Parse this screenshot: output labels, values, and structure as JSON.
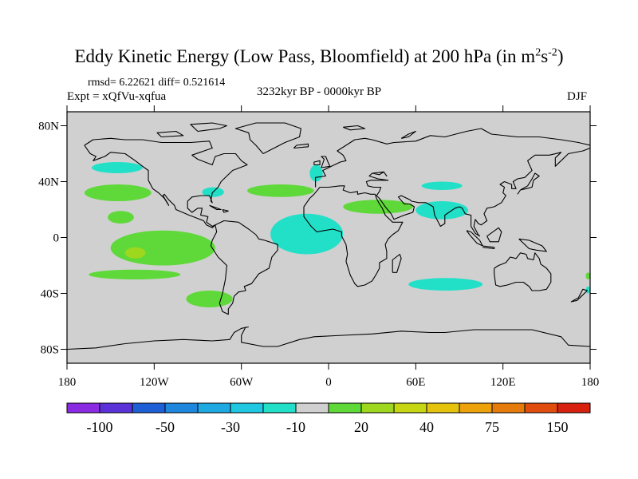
{
  "title_main": "Eddy Kinetic Energy (Low Pass, Bloomfield) at 200 hPa (in m",
  "title_unit_exp1": "2",
  "title_unit_mid": "s",
  "title_unit_exp2": "-2",
  "title_unit_close": ")",
  "stats": "rmsd= 6.22621   diff= 0.521614",
  "experiment": "Expt = xQfVu-xqfua",
  "period": "3232kyr BP - 0000kyr BP",
  "season": "DJF",
  "colors": {
    "land_gray": "#d0d0d0",
    "pos_20": "#5fd93a",
    "neg_10": "#22e0c8",
    "pos_30": "#9ed81e"
  },
  "chart_data": {
    "type": "map-contour",
    "variable": "Eddy Kinetic Energy difference",
    "level": "200 hPa",
    "lon_range": [
      -180,
      180
    ],
    "lat_range": [
      -90,
      90
    ],
    "x_ticks": [
      {
        "value": -180,
        "label": "180"
      },
      {
        "value": -120,
        "label": "120W"
      },
      {
        "value": -60,
        "label": "60W"
      },
      {
        "value": 0,
        "label": "0"
      },
      {
        "value": 60,
        "label": "60E"
      },
      {
        "value": 120,
        "label": "120E"
      },
      {
        "value": 180,
        "label": "180"
      }
    ],
    "y_ticks": [
      {
        "value": 80,
        "label": "80N"
      },
      {
        "value": 40,
        "label": "40N"
      },
      {
        "value": 0,
        "label": "0"
      },
      {
        "value": -40,
        "label": "40S"
      },
      {
        "value": -80,
        "label": "80S"
      }
    ],
    "colorbar": {
      "colors": [
        "#8a2be2",
        "#5a32d8",
        "#1f5fd6",
        "#1e86dd",
        "#1ea9e2",
        "#1fc8e0",
        "#22e0c8",
        "#d0d0d0",
        "#5fd93a",
        "#9ed81e",
        "#c6d613",
        "#e5c30c",
        "#eea20a",
        "#e57b0b",
        "#e04d0e",
        "#d8200f"
      ],
      "labels": [
        "-100",
        "-50",
        "-30",
        "-10",
        "20",
        "40",
        "75",
        "150"
      ]
    },
    "regions": [
      {
        "name": "NE Pacific",
        "level": "-10",
        "lon": [
          -163,
          -128
        ],
        "lat": [
          46,
          54
        ]
      },
      {
        "name": "N Pacific band",
        "level": "20",
        "lon": [
          -168,
          -122
        ],
        "lat": [
          26,
          38
        ]
      },
      {
        "name": "Subtropical N Pacific",
        "level": "20",
        "lon": [
          -152,
          -134
        ],
        "lat": [
          10,
          19
        ]
      },
      {
        "name": "E Pacific",
        "level": "20",
        "lon": [
          -150,
          -78
        ],
        "lat": [
          -20,
          5
        ]
      },
      {
        "name": "E Pacific core",
        "level": "30",
        "lon": [
          -140,
          -126
        ],
        "lat": [
          -15,
          -7
        ]
      },
      {
        "name": "S Pacific",
        "level": "20",
        "lon": [
          -165,
          -102
        ],
        "lat": [
          -30,
          -23
        ]
      },
      {
        "name": "S of S America",
        "level": "20",
        "lon": [
          -98,
          -66
        ],
        "lat": [
          -50,
          -38
        ]
      },
      {
        "name": "US East Coast",
        "level": "-10",
        "lon": [
          -87,
          -72
        ],
        "lat": [
          29,
          36
        ]
      },
      {
        "name": "N Atlantic",
        "level": "20",
        "lon": [
          -56,
          -10
        ],
        "lat": [
          29,
          38
        ]
      },
      {
        "name": "Gulf of Biscay",
        "level": "-10",
        "lon": [
          -13,
          -4
        ],
        "lat": [
          40,
          52
        ]
      },
      {
        "name": "Tropical Atlantic",
        "level": "-10",
        "lon": [
          -40,
          10
        ],
        "lat": [
          -12,
          17
        ]
      },
      {
        "name": "N Africa - Arabia",
        "level": "20",
        "lon": [
          10,
          58
        ],
        "lat": [
          17,
          27
        ]
      },
      {
        "name": "Central Asia",
        "level": "-10",
        "lon": [
          64,
          92
        ],
        "lat": [
          34,
          40
        ]
      },
      {
        "name": "South Asia",
        "level": "-10",
        "lon": [
          60,
          96
        ],
        "lat": [
          13,
          26
        ]
      },
      {
        "name": "S Indian Ocean",
        "level": "-10",
        "lon": [
          55,
          106
        ],
        "lat": [
          -38,
          -29
        ]
      },
      {
        "name": "Date line S",
        "level": "20",
        "lon": [
          177,
          180
        ],
        "lat": [
          -30,
          -25
        ]
      },
      {
        "name": "Date line S",
        "level": "-10",
        "lon": [
          177,
          180
        ],
        "lat": [
          -40,
          -35
        ]
      }
    ]
  }
}
